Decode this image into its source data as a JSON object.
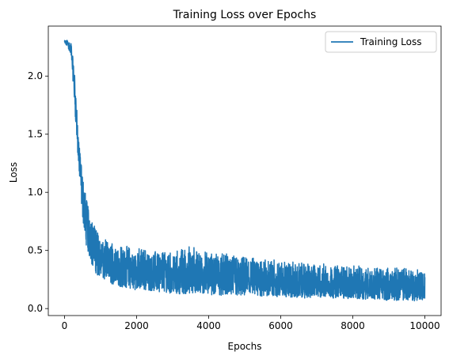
{
  "chart_data": {
    "type": "line",
    "title": "Training Loss over Epochs",
    "xlabel": "Epochs",
    "ylabel": "Loss",
    "xlim": [
      -450,
      10450
    ],
    "ylim": [
      -0.06,
      2.43
    ],
    "xticks": [
      0,
      2000,
      4000,
      6000,
      8000,
      10000
    ],
    "xtick_labels": [
      "0",
      "2000",
      "4000",
      "6000",
      "8000",
      "10000"
    ],
    "yticks": [
      0.0,
      0.5,
      1.0,
      1.5,
      2.0
    ],
    "ytick_labels": [
      "0.0",
      "0.5",
      "1.0",
      "1.5",
      "2.0"
    ],
    "grid": false,
    "legend": {
      "placement": "top-right",
      "entries": [
        "Training Loss"
      ]
    },
    "colors": {
      "series": "#1f77b4"
    },
    "series": [
      {
        "name": "Training Loss",
        "x": [
          0,
          100,
          200,
          300,
          400,
          500,
          600,
          700,
          800,
          900,
          1000,
          1200,
          1400,
          1600,
          1800,
          2000,
          2500,
          3000,
          3500,
          4000,
          4500,
          5000,
          5500,
          6000,
          6500,
          7000,
          7500,
          8000,
          8500,
          9000,
          9500,
          10000
        ],
        "y": [
          2.29,
          2.28,
          2.2,
          1.8,
          1.3,
          1.0,
          0.78,
          0.66,
          0.56,
          0.48,
          0.43,
          0.39,
          0.36,
          0.34,
          0.33,
          0.32,
          0.3,
          0.28,
          0.27,
          0.26,
          0.25,
          0.24,
          0.23,
          0.22,
          0.21,
          0.21,
          0.2,
          0.2,
          0.19,
          0.19,
          0.19,
          0.18
        ],
        "band_lo": [
          2.27,
          2.25,
          2.12,
          1.65,
          1.15,
          0.78,
          0.55,
          0.42,
          0.34,
          0.29,
          0.25,
          0.22,
          0.2,
          0.18,
          0.17,
          0.16,
          0.15,
          0.13,
          0.12,
          0.12,
          0.11,
          0.1,
          0.1,
          0.1,
          0.09,
          0.09,
          0.09,
          0.08,
          0.08,
          0.07,
          0.07,
          0.06
        ],
        "band_hi": [
          2.31,
          2.31,
          2.28,
          1.95,
          1.45,
          1.18,
          0.95,
          0.85,
          0.75,
          0.68,
          0.62,
          0.58,
          0.56,
          0.55,
          0.53,
          0.52,
          0.5,
          0.48,
          0.55,
          0.48,
          0.47,
          0.44,
          0.43,
          0.42,
          0.4,
          0.39,
          0.38,
          0.37,
          0.36,
          0.35,
          0.35,
          0.34
        ]
      }
    ]
  }
}
